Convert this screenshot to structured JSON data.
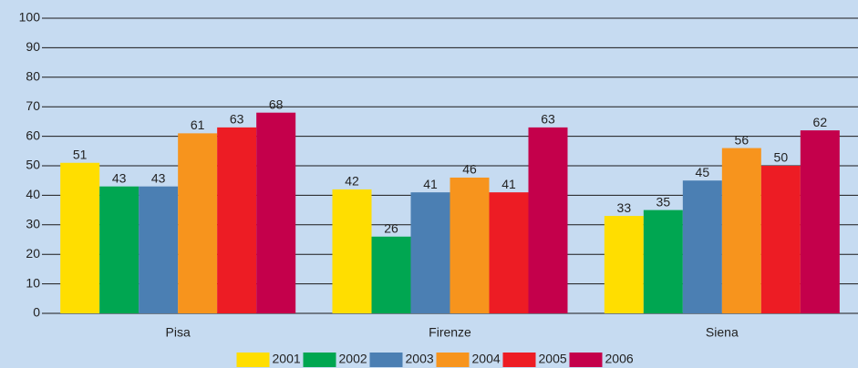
{
  "chart_data": {
    "type": "bar",
    "categories": [
      "Pisa",
      "Firenze",
      "Siena"
    ],
    "series": [
      {
        "name": "2001",
        "color": "#ffde00",
        "values": [
          51,
          42,
          33
        ]
      },
      {
        "name": "2002",
        "color": "#00a651",
        "values": [
          43,
          26,
          35
        ]
      },
      {
        "name": "2003",
        "color": "#4b7fb3",
        "values": [
          43,
          41,
          45
        ]
      },
      {
        "name": "2004",
        "color": "#f7941d",
        "values": [
          61,
          46,
          56
        ]
      },
      {
        "name": "2005",
        "color": "#ed1c24",
        "values": [
          63,
          41,
          50
        ]
      },
      {
        "name": "2006",
        "color": "#c4004b",
        "values": [
          68,
          63,
          62
        ]
      }
    ],
    "ylim": [
      0,
      100
    ],
    "yticks": [
      0,
      10,
      20,
      30,
      40,
      50,
      60,
      70,
      80,
      90,
      100
    ],
    "grid": true,
    "legend": "bottom"
  }
}
